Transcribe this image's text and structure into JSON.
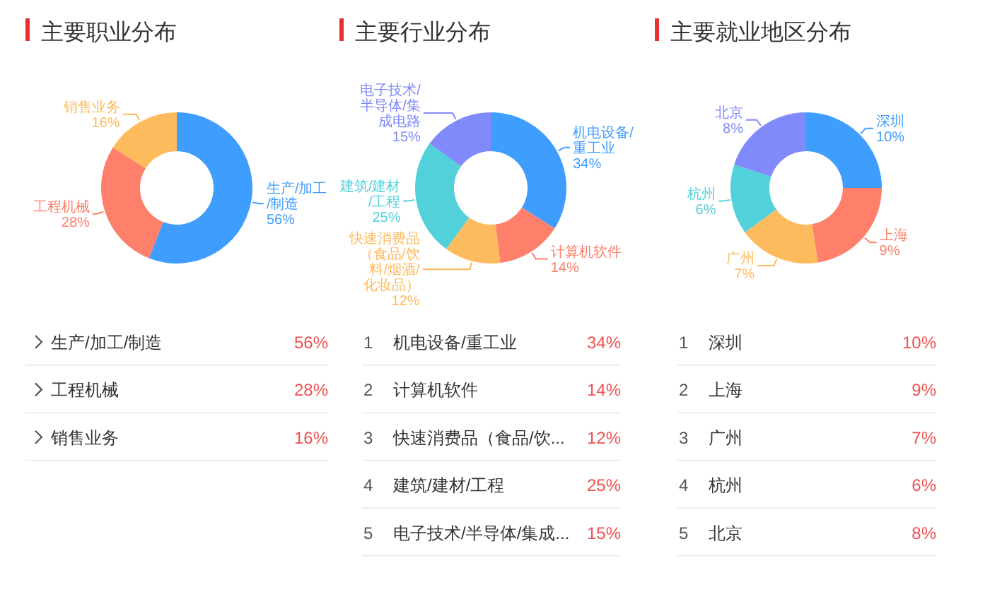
{
  "chart_data": [
    {
      "type": "donut",
      "title": "主要职业分布",
      "categories": [
        "生产/加工/制造",
        "工程机械",
        "销售业务"
      ],
      "values": [
        56,
        28,
        16
      ],
      "colors": [
        "#3f9dfd",
        "#fe806b",
        "#febb5d"
      ],
      "value_labels": [
        "56%",
        "28%",
        "16%"
      ]
    },
    {
      "type": "donut",
      "title": "主要行业分布",
      "categories": [
        "机电设备/重工业",
        "计算机软件",
        "快速消费品（食品/饮料/烟酒/化妆品）",
        "建筑/建材/工程",
        "电子技术/半导体/集成电路"
      ],
      "values": [
        34,
        14,
        12,
        25,
        15
      ],
      "colors": [
        "#3f9dfd",
        "#fe806b",
        "#febb5d",
        "#53d1da",
        "#818afa"
      ],
      "value_labels": [
        "34%",
        "14%",
        "12%",
        "25%",
        "15%"
      ],
      "annotations": [
        "1",
        "2",
        "3",
        "4",
        "5"
      ]
    },
    {
      "type": "donut",
      "title": "主要就业地区分布",
      "categories": [
        "深圳",
        "上海",
        "广州",
        "杭州",
        "北京"
      ],
      "values": [
        10,
        9,
        7,
        6,
        8
      ],
      "colors": [
        "#3f9dfd",
        "#fe806b",
        "#febb5d",
        "#53d1da",
        "#818afa"
      ],
      "value_labels": [
        "10%",
        "9%",
        "7%",
        "6%",
        "8%"
      ],
      "annotations": [
        "1",
        "2",
        "3",
        "4",
        "5"
      ]
    },
    {
      "type": "other",
      "categories": [
        "生产/加工/制造",
        "工程机械",
        "销售业务"
      ],
      "value_labels": [
        "56%",
        "28%",
        "16%"
      ]
    },
    {
      "type": "other",
      "categories": [
        "机电设备/重工业",
        "计算机软件",
        "快速消费品（食品/饮...",
        "建筑/建材/工程",
        "电子技术/半导体/集成..."
      ],
      "value_labels": [
        "34%",
        "14%",
        "12%",
        "25%",
        "15%"
      ]
    },
    {
      "type": "other",
      "categories": [
        "深圳",
        "上海",
        "广州",
        "杭州",
        "北京"
      ],
      "value_labels": [
        "10%",
        "9%",
        "7%",
        "6%",
        "8%"
      ]
    }
  ]
}
